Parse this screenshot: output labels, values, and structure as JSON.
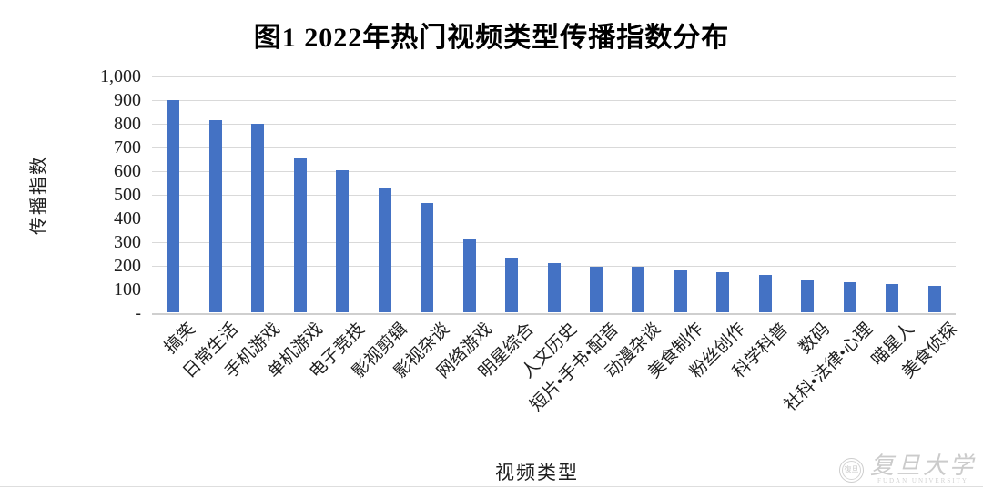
{
  "title": "图1 2022年热门视频类型传播指数分布",
  "chart_data": {
    "type": "bar",
    "title": "图1 2022年热门视频类型传播指数分布",
    "xlabel": "视频类型",
    "ylabel": "传播指数",
    "categories": [
      "搞笑",
      "日常生活",
      "手机游戏",
      "单机游戏",
      "电子竞技",
      "影视剪辑",
      "影视杂谈",
      "网络游戏",
      "明星综合",
      "人文历史",
      "短片•手书•配音",
      "动漫杂谈",
      "美食制作",
      "粉丝创作",
      "科学科普",
      "数码",
      "社科•法律•心理",
      "喵星人",
      "美食侦探"
    ],
    "values": [
      900,
      815,
      800,
      655,
      605,
      525,
      465,
      310,
      235,
      210,
      195,
      195,
      180,
      170,
      160,
      135,
      130,
      120,
      115
    ],
    "ylim": [
      0,
      1000
    ],
    "ytick_interval": 100,
    "ytick_labels_top_to_bottom": [
      "1,000",
      "900",
      "800",
      "700",
      "600",
      "500",
      "400",
      "300",
      "200",
      "100",
      "-"
    ],
    "grid": true,
    "legend": "none",
    "bar_color": "#4472C4",
    "gridline_color": "#D9D9D9"
  },
  "watermark": {
    "seal_text": "復旦",
    "university_name": "复旦大学",
    "university_name_latin": "FUDAN UNIVERSITY"
  }
}
